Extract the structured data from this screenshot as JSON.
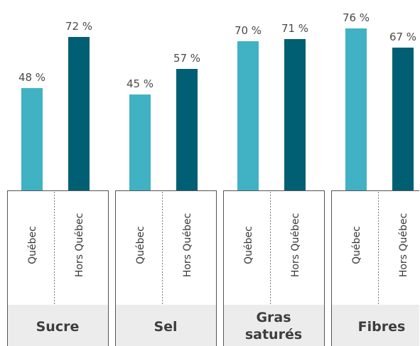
{
  "chart_data": {
    "type": "bar",
    "groups": [
      {
        "name": "Sucre",
        "bars": [
          {
            "category": "Québec",
            "value": 48,
            "label": "48 %"
          },
          {
            "category": "Hors Québec",
            "value": 72,
            "label": "72 %"
          }
        ]
      },
      {
        "name": "Sel",
        "bars": [
          {
            "category": "Québec",
            "value": 45,
            "label": "45 %"
          },
          {
            "category": "Hors Québec",
            "value": 57,
            "label": "57 %"
          }
        ]
      },
      {
        "name": "Gras saturés",
        "name_lines": [
          "Gras",
          "saturés"
        ],
        "bars": [
          {
            "category": "Québec",
            "value": 70,
            "label": "70 %"
          },
          {
            "category": "Hors Québec",
            "value": 71,
            "label": "71 %"
          }
        ]
      },
      {
        "name": "Fibres",
        "bars": [
          {
            "category": "Québec",
            "value": 76,
            "label": "76 %"
          },
          {
            "category": "Hors Québec",
            "value": 67,
            "label": "67 %"
          }
        ]
      }
    ],
    "series_colors": {
      "Québec": "#41b1c4",
      "Hors Québec": "#005f73"
    },
    "ylim": [
      0,
      100
    ],
    "grid": false,
    "legend": "none"
  }
}
